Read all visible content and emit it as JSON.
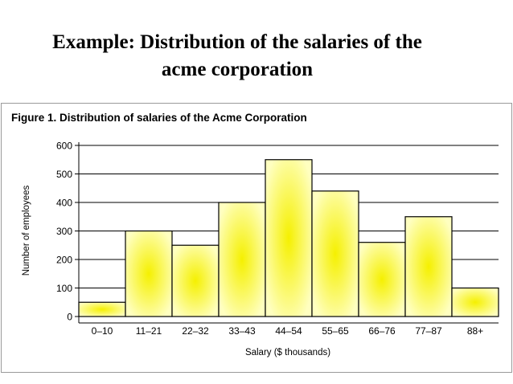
{
  "slide": {
    "title_line1": "Example: Distribution of the salaries of the",
    "title_line2": "acme corporation"
  },
  "colors": {
    "bar_edge": "#ffffc0",
    "bar_center": "#f5f000",
    "bar_stroke": "#000000",
    "grid": "#000000"
  },
  "chart_data": {
    "type": "bar",
    "title": "Figure 1. Distribution of salaries of the Acme Corporation",
    "xlabel": "Salary ($ thousands)",
    "ylabel": "Number of employees",
    "categories": [
      "0–10",
      "11–21",
      "22–32",
      "33–43",
      "44–54",
      "55–65",
      "66–76",
      "77–87",
      "88+"
    ],
    "values": [
      50,
      300,
      250,
      400,
      550,
      440,
      260,
      350,
      100
    ],
    "yticks": [
      0,
      100,
      200,
      300,
      400,
      500,
      600
    ],
    "ylim": [
      0,
      600
    ],
    "grid": true,
    "legend": "none"
  }
}
